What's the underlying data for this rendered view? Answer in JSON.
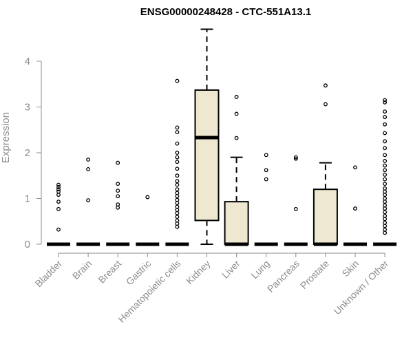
{
  "chart_data": {
    "type": "boxplot",
    "title": "ENSG00000248428 - CTC-551A13.1",
    "xlabel": "",
    "ylabel": "Expression",
    "ylim": [
      0,
      4.7
    ],
    "yticks": [
      0,
      1,
      2,
      3,
      4
    ],
    "box_fill": "#efe8d0",
    "categories": [
      "Bladder",
      "Brain",
      "Breast",
      "Gastric",
      "Hematopoietic cells",
      "Kidney",
      "Liver",
      "Lung",
      "Pancreas",
      "Prostate",
      "Skin",
      "Unknown / Other"
    ],
    "boxes": [
      {
        "name": "Bladder",
        "q1": 0,
        "median": 0,
        "q3": 0,
        "whisker_low": 0,
        "whisker_high": 0,
        "outliers": [
          0.32,
          0.77,
          0.93,
          1.08,
          1.15,
          1.2,
          1.25,
          1.3
        ]
      },
      {
        "name": "Brain",
        "q1": 0,
        "median": 0,
        "q3": 0,
        "whisker_low": 0,
        "whisker_high": 0,
        "outliers": [
          0.96,
          1.64,
          1.85
        ]
      },
      {
        "name": "Breast",
        "q1": 0,
        "median": 0,
        "q3": 0,
        "whisker_low": 0,
        "whisker_high": 0,
        "outliers": [
          0.8,
          0.87,
          1.05,
          1.17,
          1.32,
          1.78
        ]
      },
      {
        "name": "Gastric",
        "q1": 0,
        "median": 0,
        "q3": 0,
        "whisker_low": 0,
        "whisker_high": 0,
        "outliers": [
          1.03
        ]
      },
      {
        "name": "Hematopoietic cells",
        "q1": 0,
        "median": 0,
        "q3": 0,
        "whisker_low": 0,
        "whisker_high": 0,
        "outliers": [
          0.38,
          0.45,
          0.52,
          0.6,
          0.68,
          0.75,
          0.82,
          0.9,
          0.97,
          1.05,
          1.12,
          1.2,
          1.3,
          1.38,
          1.5,
          1.65,
          1.8,
          1.9,
          2.0,
          2.2,
          2.45,
          2.55,
          3.57
        ]
      },
      {
        "name": "Kidney",
        "q1": 0.52,
        "median": 2.33,
        "q3": 3.37,
        "whisker_low": 0,
        "whisker_high": 4.7,
        "outliers": []
      },
      {
        "name": "Liver",
        "q1": 0,
        "median": 0,
        "q3": 0.93,
        "whisker_low": 0,
        "whisker_high": 1.9,
        "outliers": [
          2.32,
          2.85,
          3.22
        ]
      },
      {
        "name": "Lung",
        "q1": 0,
        "median": 0,
        "q3": 0,
        "whisker_low": 0,
        "whisker_high": 0,
        "outliers": [
          1.42,
          1.62,
          1.95
        ]
      },
      {
        "name": "Pancreas",
        "q1": 0,
        "median": 0,
        "q3": 0,
        "whisker_low": 0,
        "whisker_high": 0,
        "outliers": [
          0.77,
          1.87,
          1.9
        ]
      },
      {
        "name": "Prostate",
        "q1": 0,
        "median": 0,
        "q3": 1.2,
        "whisker_low": 0,
        "whisker_high": 1.78,
        "outliers": [
          3.06,
          3.47
        ]
      },
      {
        "name": "Skin",
        "q1": 0,
        "median": 0,
        "q3": 0,
        "whisker_low": 0,
        "whisker_high": 0,
        "outliers": [
          0.78,
          1.68
        ]
      },
      {
        "name": "Unknown / Other",
        "q1": 0,
        "median": 0,
        "q3": 0,
        "whisker_low": 0,
        "whisker_high": 0,
        "outliers": [
          0.25,
          0.32,
          0.4,
          0.47,
          0.55,
          0.62,
          0.7,
          0.78,
          0.85,
          0.93,
          1.0,
          1.08,
          1.15,
          1.22,
          1.32,
          1.42,
          1.52,
          1.62,
          1.72,
          1.82,
          1.95,
          2.1,
          2.25,
          2.43,
          2.62,
          2.78,
          2.9,
          3.1,
          3.15
        ]
      }
    ]
  }
}
